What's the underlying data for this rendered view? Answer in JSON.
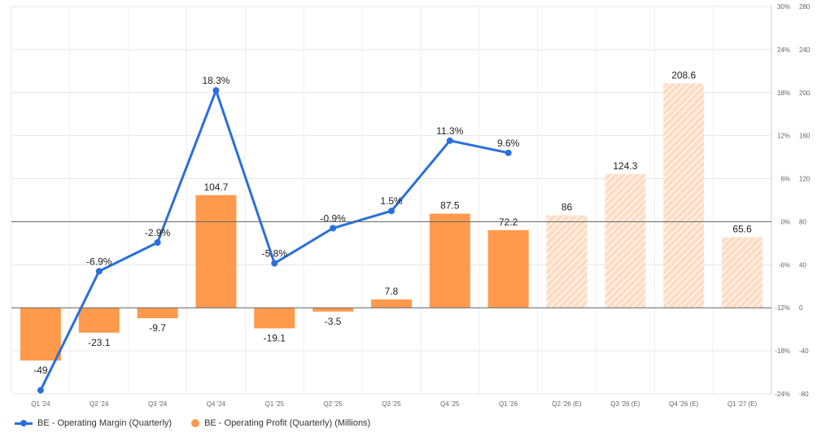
{
  "chart_data": {
    "type": "bar",
    "categories": [
      "Q1 '24",
      "Q2 '24",
      "Q3 '24",
      "Q4 '24",
      "Q1 '25",
      "Q2 '25",
      "Q3 '25",
      "Q4 '25",
      "Q1 '26",
      "Q2 '26 (E)",
      "Q3 '26 (E)",
      "Q4 '26 (E)",
      "Q1 '27 (E)"
    ],
    "estimated": [
      false,
      false,
      false,
      false,
      false,
      false,
      false,
      false,
      false,
      true,
      true,
      true,
      true
    ],
    "series": [
      {
        "name": "BE - Operating Margin (Quarterly)",
        "type": "line",
        "axis": "left",
        "color": "#2a6fdb",
        "values": [
          -23.5,
          -6.9,
          -2.9,
          18.3,
          -5.8,
          -0.9,
          1.5,
          11.3,
          9.6,
          null,
          null,
          null,
          null
        ],
        "labels": [
          "",
          "-6.9%",
          "-2.9%",
          "18.3%",
          "-5.8%",
          "-0.9%",
          "1.5%",
          "11.3%",
          "9.6%",
          "",
          "",
          "",
          ""
        ]
      },
      {
        "name": "BE - Operating Profit (Quarterly) (Millions)",
        "type": "bar",
        "axis": "right",
        "color": "#ff9a4d",
        "values": [
          -49,
          -23.1,
          -9.7,
          104.7,
          -19.1,
          -3.5,
          7.8,
          87.5,
          72.2,
          86,
          124.3,
          208.6,
          65.6
        ],
        "labels": [
          "-49",
          "-23.1",
          "-9.7",
          "104.7",
          "-19.1",
          "-3.5",
          "7.8",
          "87.5",
          "72.2",
          "86",
          "124.3",
          "208.6",
          "65.6"
        ]
      }
    ],
    "left_axis": {
      "ylim": [
        -24,
        30
      ],
      "ticks": [
        30,
        24,
        18,
        12,
        6,
        0,
        -6,
        -12,
        -18,
        -24
      ],
      "tick_labels": [
        "30%",
        "24%",
        "18%",
        "12%",
        "6%",
        "0%",
        "-6%",
        "-12%",
        "-18%",
        "-24%"
      ]
    },
    "right_axis": {
      "ylim": [
        -80,
        280
      ],
      "ticks": [
        280,
        240,
        200,
        160,
        120,
        80,
        40,
        0,
        -40,
        -80
      ],
      "tick_labels": [
        "280",
        "240",
        "200",
        "160",
        "120",
        "80",
        "40",
        "0",
        "-40",
        "-80"
      ]
    },
    "grid": true,
    "legend_position": "bottom-left"
  },
  "legend": {
    "line_label": "BE - Operating Margin (Quarterly)",
    "bar_label": "BE - Operating Profit (Quarterly) (Millions)",
    "line_color": "#2a6fdb",
    "bar_color": "#ff9a4d"
  }
}
